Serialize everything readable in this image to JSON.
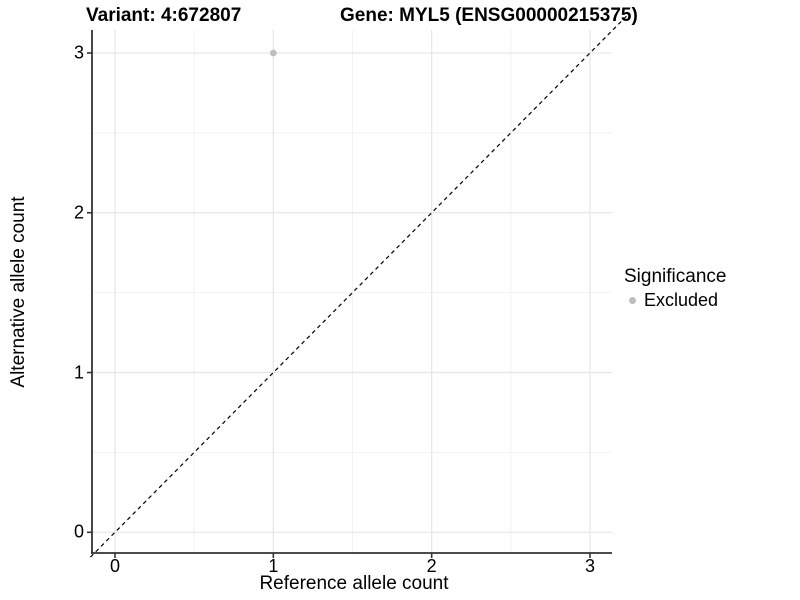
{
  "figure": {
    "title_left": "Variant: 4:672807",
    "title_right": "Gene: MYL5 (ENSG00000215375)"
  },
  "chart_data": {
    "type": "scatter",
    "title_left": "Variant: 4:672807",
    "title_right": "Gene: MYL5 (ENSG00000215375)",
    "xlabel": "Reference allele count",
    "ylabel": "Alternative allele count",
    "xlim": [
      -0.15,
      3.15
    ],
    "ylim": [
      -0.15,
      3.15
    ],
    "x_ticks": [
      0,
      1,
      2,
      3
    ],
    "y_ticks": [
      0,
      1,
      2,
      3
    ],
    "x_minor_ticks": [
      0.5,
      1.5,
      2.5
    ],
    "y_minor_ticks": [
      0.5,
      1.5,
      2.5
    ],
    "grid": "major+minor",
    "reference_line": {
      "type": "identity",
      "equation": "y = x",
      "style": "dashed",
      "color": "#000000"
    },
    "series": [
      {
        "name": "Excluded",
        "color": "#bdbdbd",
        "points": [
          [
            1,
            3
          ]
        ]
      }
    ],
    "legend": {
      "title": "Significance",
      "position": "right",
      "entries": [
        {
          "label": "Excluded",
          "color": "#bdbdbd"
        }
      ]
    }
  },
  "colors": {
    "background": "#ffffff",
    "grid_major": "#e6e6e6",
    "grid_minor": "#f2f2f2",
    "axis": "#333333",
    "text": "#000000",
    "point": "#bdbdbd"
  }
}
